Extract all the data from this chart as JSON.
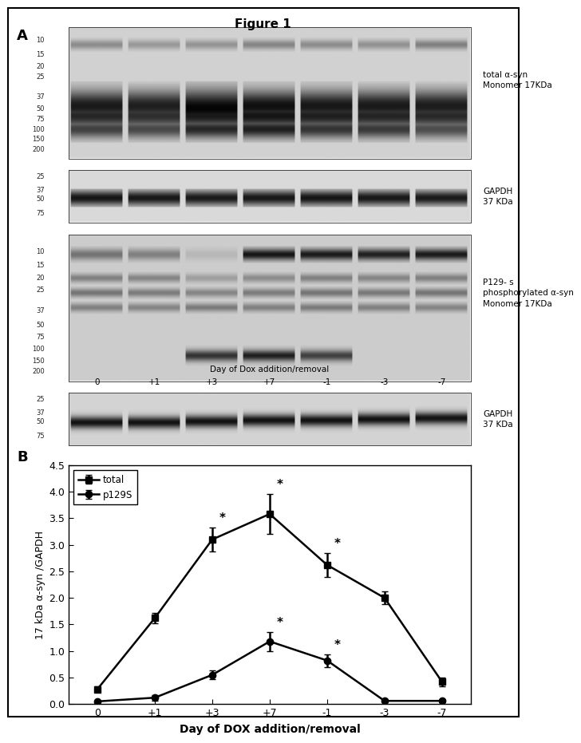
{
  "title": "Figure 1",
  "panel_a_label": "A",
  "panel_b_label": "B",
  "x_labels": [
    "0",
    "+1",
    "+3",
    "+7",
    "-1",
    "-3",
    "-7"
  ],
  "x_positions": [
    0,
    1,
    2,
    3,
    4,
    5,
    6
  ],
  "total_values": [
    0.28,
    1.62,
    3.1,
    3.58,
    2.62,
    2.0,
    0.42
  ],
  "total_errors": [
    0.05,
    0.1,
    0.22,
    0.38,
    0.22,
    0.12,
    0.08
  ],
  "p129s_values": [
    0.05,
    0.12,
    0.55,
    1.18,
    0.82,
    0.06,
    0.06
  ],
  "p129s_errors": [
    0.02,
    0.05,
    0.08,
    0.18,
    0.12,
    0.03,
    0.02
  ],
  "total_stars": [
    false,
    false,
    true,
    true,
    true,
    false,
    false
  ],
  "p129s_stars": [
    false,
    false,
    false,
    true,
    true,
    false,
    false
  ],
  "ylabel": "17 kDa α-syn /GAPDH",
  "xlabel": "Day of DOX addition/removal",
  "ylim": [
    0,
    4.5
  ],
  "yticks": [
    0.0,
    0.5,
    1.0,
    1.5,
    2.0,
    2.5,
    3.0,
    3.5,
    4.0,
    4.5
  ],
  "line_color": "#000000",
  "total_marker": "s",
  "p129s_marker": "o",
  "marker_size": 6,
  "line_width": 1.8,
  "legend_total": "total",
  "legend_p129s": "p129S",
  "wb1_markers": [
    "200",
    "150",
    "100",
    "75",
    "50",
    "37",
    "25",
    "20",
    "15",
    "10"
  ],
  "wb2_markers": [
    "75",
    "50",
    "37",
    "25"
  ],
  "wb3_markers": [
    "200",
    "150",
    "100",
    "75",
    "50",
    "37",
    "25",
    "20",
    "15",
    "10"
  ],
  "wb4_markers": [
    "75",
    "50",
    "37",
    "25"
  ],
  "wb1_label": "total α-syn\nMonomer 17KDa",
  "wb2_label": "GAPDH\n37 KDa",
  "wb3_label": "P129- s\nphosphorylated α-syn\nMonomer 17KDa",
  "wb4_label": "GAPDH\n37 KDa",
  "day_label_blot": "Day of Dox addition/removal",
  "day_labels_blot": [
    "0",
    "+1",
    "+3",
    "+7",
    "-1",
    "-3",
    "-7"
  ]
}
